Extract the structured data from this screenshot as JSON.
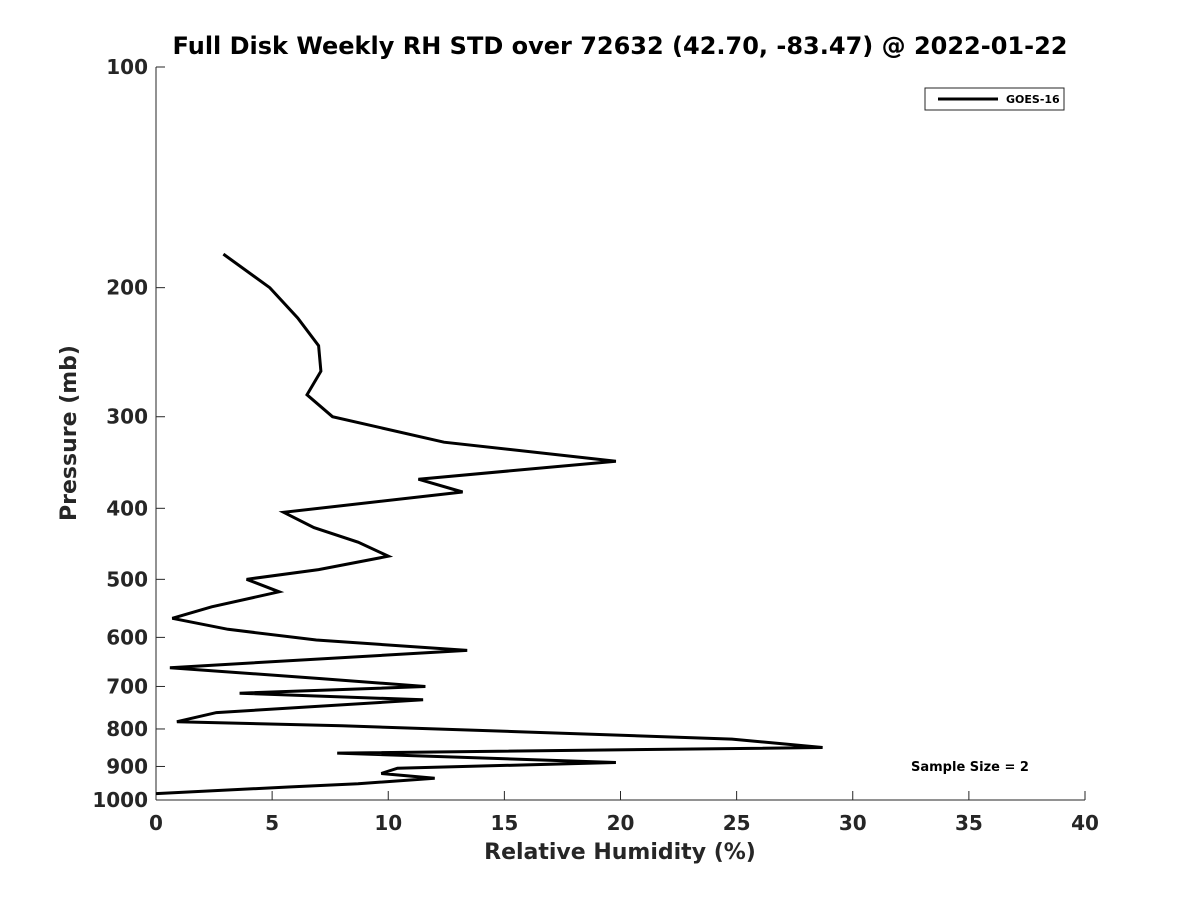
{
  "chart_data": {
    "type": "line",
    "title": "Full Disk Weekly RH STD over 72632 (42.70, -83.47) @ 2022-01-22",
    "xlabel": "Relative Humidity (%)",
    "ylabel": "Pressure (mb)",
    "xlim": [
      0,
      40
    ],
    "ylim": [
      1000,
      100
    ],
    "yscale": "log",
    "x_ticks": [
      0,
      5,
      10,
      15,
      20,
      25,
      30,
      35,
      40
    ],
    "x_tick_labels": [
      "0",
      "5",
      "10",
      "15",
      "20",
      "25",
      "30",
      "35",
      "40"
    ],
    "y_ticks": [
      100,
      200,
      300,
      400,
      500,
      600,
      700,
      800,
      900,
      1000
    ],
    "y_tick_labels": [
      "100",
      "200",
      "300",
      "400",
      "500",
      "600",
      "700",
      "800",
      "900",
      "1000"
    ],
    "grid": false,
    "legend": {
      "position": "top-right",
      "entries": [
        "GOES-16"
      ]
    },
    "annotation": "Sample Size = 2",
    "series": [
      {
        "name": "GOES-16",
        "color": "#000000",
        "points": [
          [
            2.9,
            180
          ],
          [
            4.9,
            200
          ],
          [
            6.1,
            220
          ],
          [
            7.0,
            240
          ],
          [
            7.1,
            260
          ],
          [
            6.5,
            280
          ],
          [
            7.6,
            300
          ],
          [
            12.4,
            325
          ],
          [
            19.8,
            345
          ],
          [
            11.3,
            365
          ],
          [
            13.2,
            380
          ],
          [
            5.5,
            405
          ],
          [
            6.8,
            425
          ],
          [
            8.7,
            445
          ],
          [
            10.0,
            465
          ],
          [
            7.0,
            485
          ],
          [
            3.9,
            500
          ],
          [
            5.3,
            520
          ],
          [
            2.4,
            545
          ],
          [
            0.7,
            565
          ],
          [
            3.1,
            585
          ],
          [
            6.9,
            605
          ],
          [
            13.4,
            625
          ],
          [
            0.6,
            660
          ],
          [
            7.1,
            683
          ],
          [
            11.6,
            700
          ],
          [
            3.6,
            715
          ],
          [
            11.5,
            730
          ],
          [
            2.6,
            760
          ],
          [
            0.9,
            782
          ],
          [
            8.0,
            792
          ],
          [
            15.6,
            807
          ],
          [
            24.8,
            826
          ],
          [
            28.7,
            848
          ],
          [
            7.8,
            863
          ],
          [
            19.8,
            889
          ],
          [
            10.4,
            905
          ],
          [
            9.7,
            920
          ],
          [
            12.0,
            934
          ],
          [
            8.7,
            950
          ],
          [
            5.7,
            960
          ],
          [
            0.0,
            980
          ]
        ]
      }
    ]
  }
}
